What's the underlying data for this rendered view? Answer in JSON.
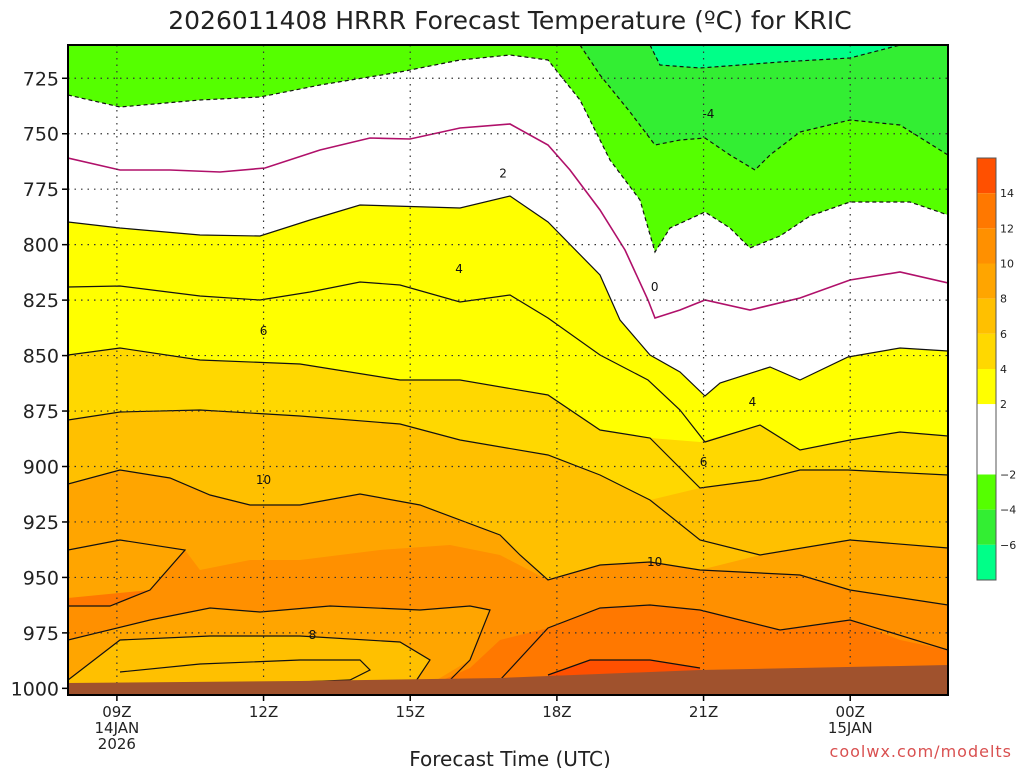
{
  "chart_data": {
    "type": "heatmap",
    "title": "2026011408 HRRR Forecast Temperature (ºC) for KRIC",
    "xlabel": "Forecast Time (UTC)",
    "credit": "coolwx.com/modelts",
    "x_ticks": [
      {
        "hour": 9,
        "lines": [
          "09Z",
          "14JAN",
          "2026"
        ]
      },
      {
        "hour": 12,
        "lines": [
          "12Z"
        ]
      },
      {
        "hour": 15,
        "lines": [
          "15Z"
        ]
      },
      {
        "hour": 18,
        "lines": [
          "18Z"
        ]
      },
      {
        "hour": 21,
        "lines": [
          "21Z"
        ]
      },
      {
        "hour": 24,
        "lines": [
          "00Z",
          "15JAN"
        ]
      }
    ],
    "y_ticks": [
      725,
      750,
      775,
      800,
      825,
      850,
      875,
      900,
      925,
      950,
      975,
      1000
    ],
    "xlim": [
      8,
      26
    ],
    "ylim_pressure": [
      1003,
      710
    ],
    "colorbar": {
      "labels": [
        14,
        12,
        10,
        8,
        6,
        4,
        2,
        -2,
        -4,
        -6
      ],
      "bands": [
        {
          "range": [
            14,
            16
          ],
          "color": "#ff5000"
        },
        {
          "range": [
            12,
            14
          ],
          "color": "#ff7800"
        },
        {
          "range": [
            10,
            12
          ],
          "color": "#ff9000"
        },
        {
          "range": [
            8,
            10
          ],
          "color": "#ffa500"
        },
        {
          "range": [
            6,
            8
          ],
          "color": "#ffc000"
        },
        {
          "range": [
            4,
            6
          ],
          "color": "#ffd800"
        },
        {
          "range": [
            2,
            4
          ],
          "color": "#ffff00"
        },
        {
          "range": [
            -2,
            2
          ],
          "color": "#ffffff"
        },
        {
          "range": [
            -4,
            -2
          ],
          "color": "#55ff00"
        },
        {
          "range": [
            -6,
            -4
          ],
          "color": "#33ee33"
        },
        {
          "range": [
            -8,
            -6
          ],
          "color": "#00ff88"
        }
      ]
    },
    "contour_labels": [
      {
        "text": "-4",
        "hour": 21.1,
        "pressure": 741
      },
      {
        "text": "2",
        "hour": 16.9,
        "pressure": 768
      },
      {
        "text": "0",
        "hour": 20.0,
        "pressure": 819
      },
      {
        "text": "4",
        "hour": 16.0,
        "pressure": 811
      },
      {
        "text": "6",
        "hour": 12.0,
        "pressure": 839
      },
      {
        "text": "4",
        "hour": 22.0,
        "pressure": 871
      },
      {
        "text": "6",
        "hour": 21.0,
        "pressure": 898
      },
      {
        "text": "10",
        "hour": 12.0,
        "pressure": 906
      },
      {
        "text": "10",
        "hour": 20.0,
        "pressure": 943
      },
      {
        "text": "8",
        "hour": 13.0,
        "pressure": 976
      }
    ]
  }
}
